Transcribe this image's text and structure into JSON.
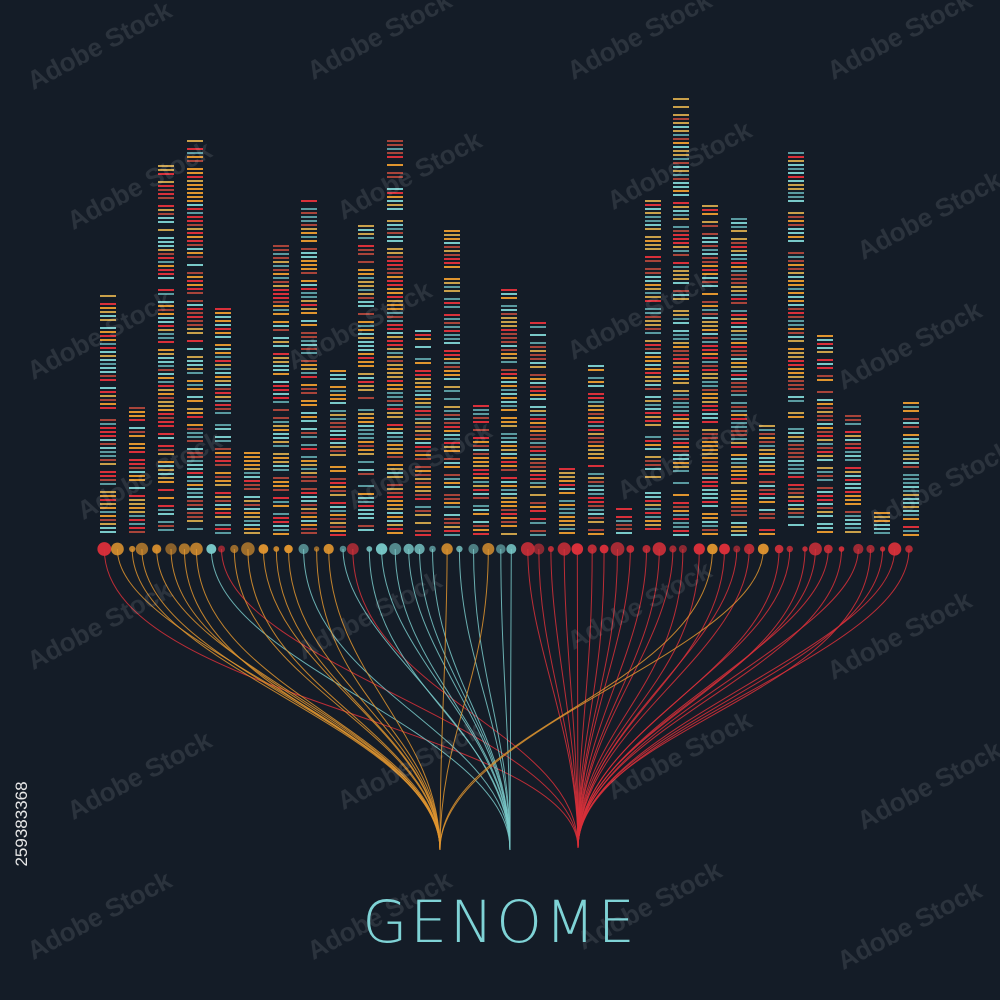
{
  "title": "GENOME",
  "stock_id": "259383368",
  "watermark": "Adobe Stock",
  "colors": {
    "background": "#141c27",
    "orange": "#e0952f",
    "teal": "#79c9c9",
    "red": "#d9303a",
    "title": "#7fd3d6"
  },
  "icons": [
    "dna-barcode-illustration",
    "adobe-stock-watermark"
  ]
}
